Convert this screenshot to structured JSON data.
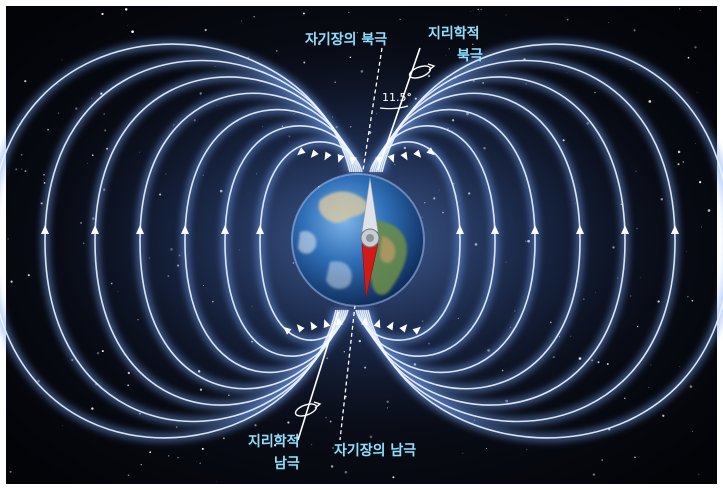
{
  "labels": {
    "magnetic_north": "자기장의 북극",
    "geographic_north_line1": "지리학적",
    "geographic_north_line2": "북극",
    "angle": "11.5°",
    "geographic_south_line1": "지리학적",
    "geographic_south_line2": "남극",
    "magnetic_south": "자기장의 남극"
  },
  "colors": {
    "space": "#05060d",
    "field_line": "#eef6ff",
    "field_glow": "#6f9df0",
    "label_text": "#8fe0ff",
    "axis_line": "#ffffff",
    "needle_north": "#dfe3e8",
    "needle_south": "#d11a1a"
  },
  "icons": {
    "north_rotation": "rotation-arrow-icon",
    "south_rotation": "rotation-arrow-icon"
  },
  "diagram": {
    "subject": "earth",
    "field_lines_per_side": 7,
    "magnetic_tilt_deg": 11.5
  }
}
